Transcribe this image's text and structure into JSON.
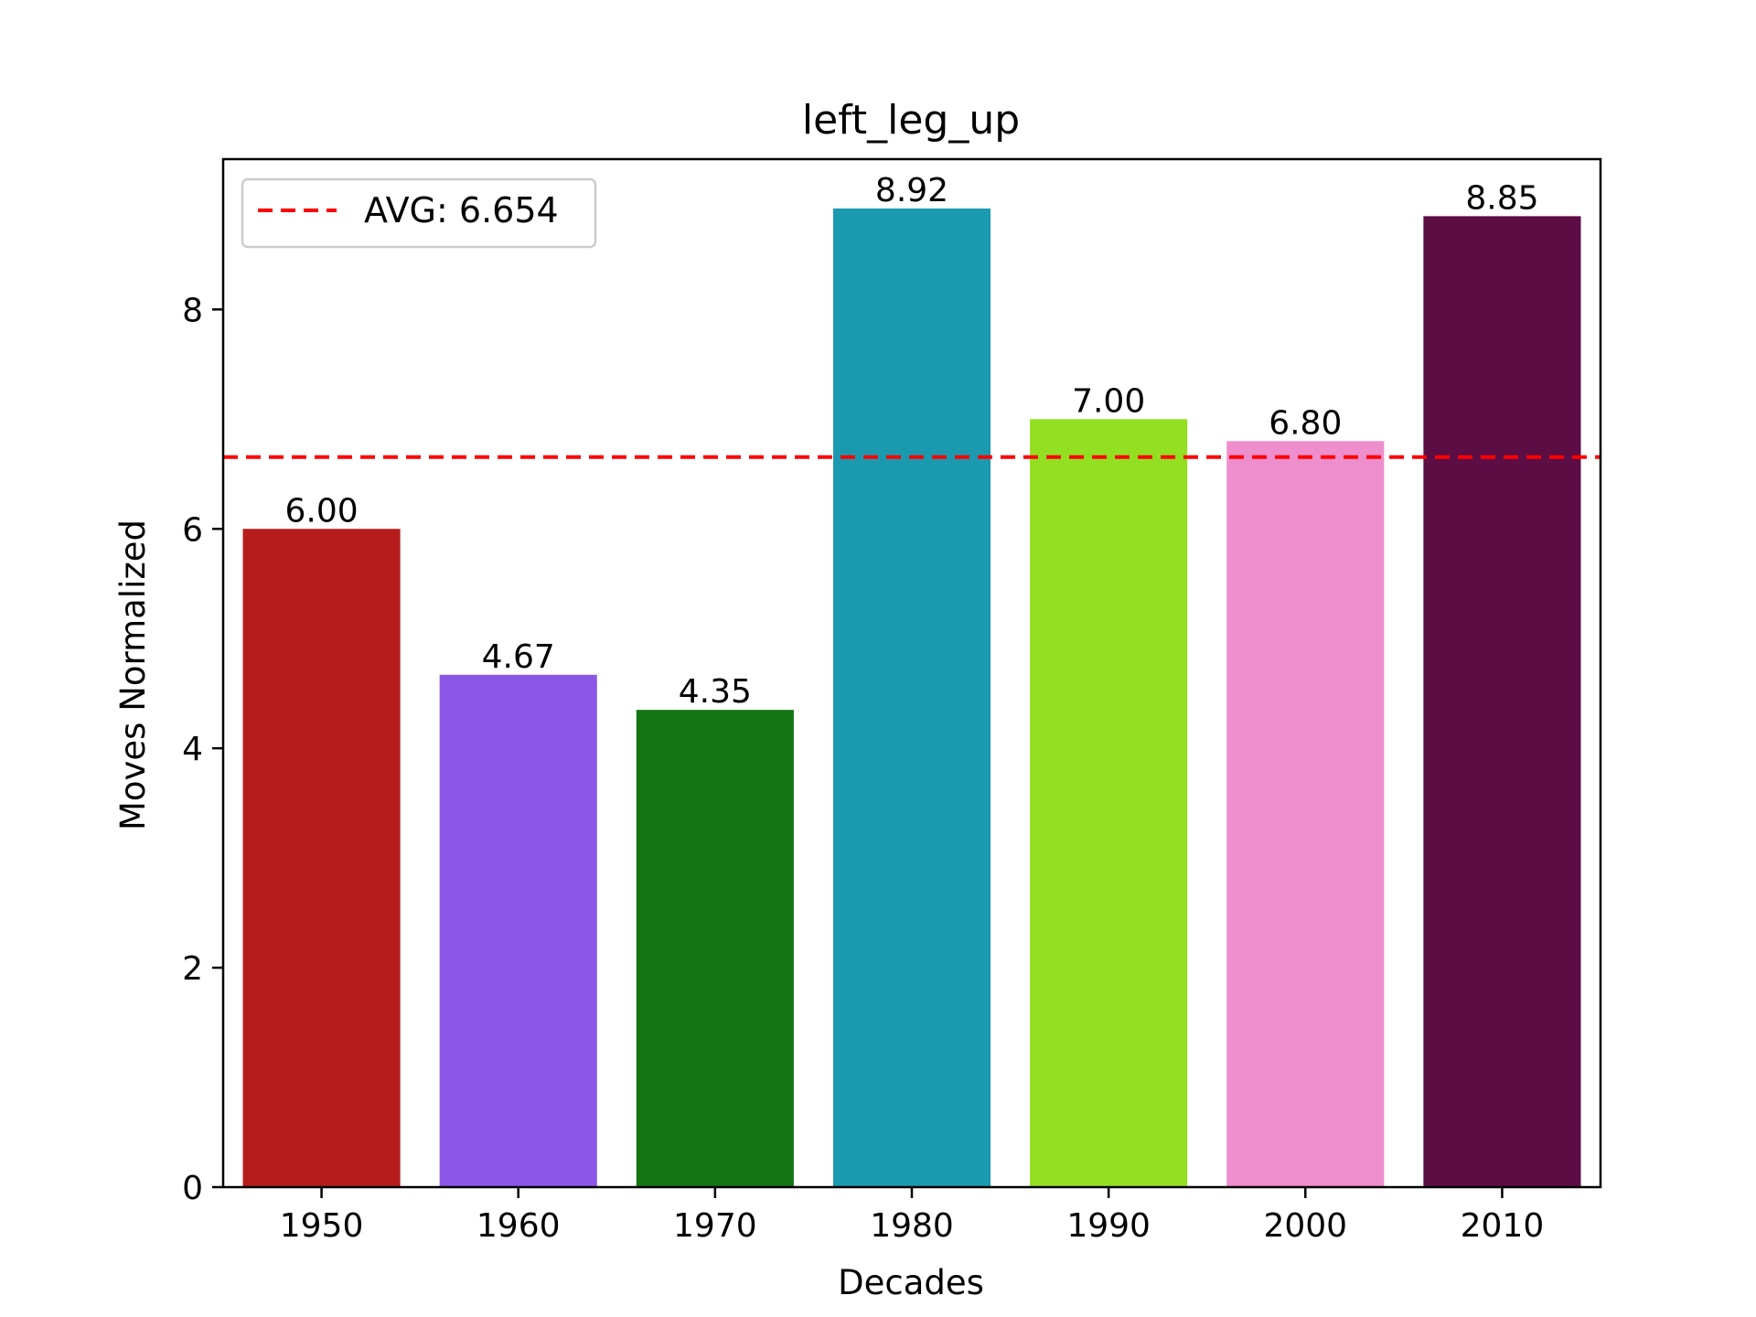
{
  "chart_data": {
    "type": "bar",
    "title": "left_leg_up",
    "xlabel": "Decades",
    "ylabel": "Moves Normalized",
    "categories": [
      "1950",
      "1960",
      "1970",
      "1980",
      "1990",
      "2000",
      "2010"
    ],
    "values": [
      6.0,
      4.67,
      4.35,
      8.92,
      7.0,
      6.8,
      8.85
    ],
    "value_labels": [
      "6.00",
      "4.67",
      "4.35",
      "8.92",
      "7.00",
      "6.80",
      "8.85"
    ],
    "colors": [
      "#b71c1c",
      "#8c57e6",
      "#137513",
      "#1b9aaf",
      "#93df21",
      "#ee8ecd",
      "#5c0d44"
    ],
    "ylim": [
      0,
      9.37
    ],
    "yticks": [
      0,
      2,
      4,
      6,
      8
    ],
    "ytick_labels": [
      "0",
      "2",
      "4",
      "6",
      "8"
    ],
    "grid": false,
    "reference_line": {
      "value": 6.654,
      "label": "AVG: 6.654",
      "color": "#ff0000",
      "style": "dashed"
    },
    "legend": {
      "placement": "top-left",
      "entries": [
        "AVG: 6.654"
      ]
    }
  }
}
